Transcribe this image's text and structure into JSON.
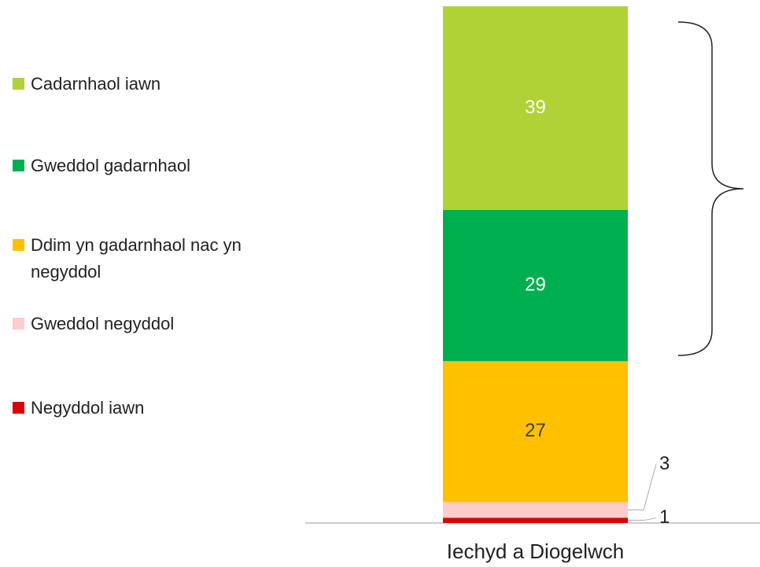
{
  "chart_data": {
    "type": "stacked_bar",
    "categories": [
      "Iechyd a Diogelwch"
    ],
    "series": [
      {
        "name": "Cadarnhaol iawn",
        "color": "#b0d236",
        "values": [
          39
        ]
      },
      {
        "name": "Gweddol gadarnhaol",
        "color": "#00b050",
        "values": [
          29
        ]
      },
      {
        "name": "Ddim yn gadarnhaol nac yn negyddol",
        "color": "#ffc000",
        "values": [
          27
        ]
      },
      {
        "name": "Gweddol negyddol",
        "color": "#ffcccc",
        "values": [
          3
        ]
      },
      {
        "name": "Negyddol iawn",
        "color": "#e00000",
        "values": [
          1
        ]
      }
    ],
    "legend": "left"
  }
}
